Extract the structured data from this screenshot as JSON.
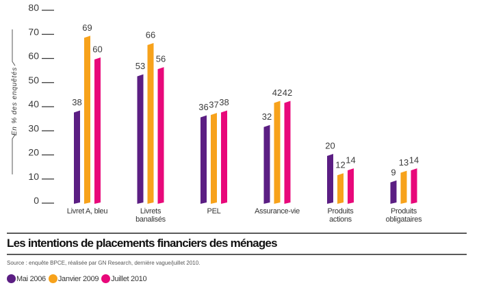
{
  "chart_data": {
    "type": "bar",
    "title": "Les intentions de placements financiers des ménages",
    "source": "Source : enquête BPCE, réalisée par GN Research, dernière vague/juillet 2010.",
    "xlabel": "",
    "ylabel": "En % des enquêtés",
    "ylim": [
      0,
      80
    ],
    "yticks": [
      "0",
      "10",
      "20",
      "30",
      "40",
      "50",
      "60",
      "70",
      "80"
    ],
    "grid": false,
    "legend_position": "bottom-left",
    "categories": [
      [
        "Livret A, bleu"
      ],
      [
        "Livrets",
        "banalisés"
      ],
      [
        "PEL"
      ],
      [
        "Assurance-vie"
      ],
      [
        "Produits",
        "actions"
      ],
      [
        "Produits",
        "obligataires"
      ]
    ],
    "series": [
      {
        "name": "Mai 2006",
        "color": "#5b1e83",
        "values": [
          38,
          53,
          36,
          32,
          20,
          9
        ]
      },
      {
        "name": "Janvier 2009",
        "color": "#f7a21b",
        "values": [
          69,
          66,
          37,
          42,
          12,
          13
        ]
      },
      {
        "name": "Juillet 2010",
        "color": "#e8087a",
        "values": [
          60,
          56,
          38,
          42,
          14,
          14
        ]
      }
    ]
  },
  "legend": [
    {
      "label": "Mai 2006",
      "color": "#5b1e83"
    },
    {
      "label": "Janvier 2009",
      "color": "#f7a21b"
    },
    {
      "label": "Juillet 2010",
      "color": "#e8087a"
    }
  ]
}
